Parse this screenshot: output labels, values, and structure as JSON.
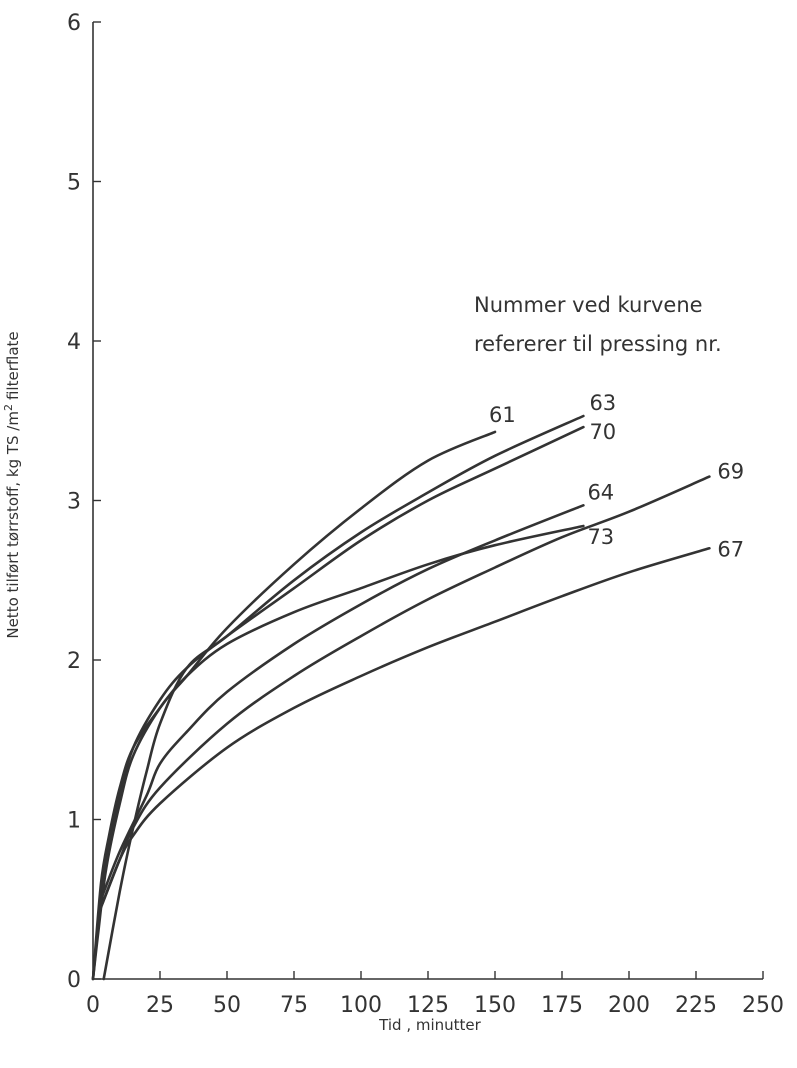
{
  "chart_data": {
    "type": "line",
    "xlabel": "Tid , minutter",
    "ylabel": "Netto tilført tørrstoff, kg TS /m",
    "ylabel_sup": "2",
    "ylabel_end": "filterflate",
    "xlim": [
      0,
      250
    ],
    "ylim": [
      0,
      6
    ],
    "xticks": [
      "0",
      "25",
      "50",
      "75",
      "100",
      "125",
      "150",
      "175",
      "200",
      "225",
      "250"
    ],
    "yticks": [
      "0",
      "1",
      "2",
      "3",
      "4",
      "5",
      "6"
    ],
    "grid": false,
    "annotation": [
      "Nummer ved kurvene",
      "refererer til pressing nr."
    ],
    "series": [
      {
        "name": "61",
        "x": [
          0,
          2,
          5,
          10,
          15,
          25,
          35,
          50,
          75,
          100,
          125,
          150
        ],
        "y": [
          0,
          0.3,
          0.7,
          1.1,
          1.4,
          1.7,
          1.9,
          2.2,
          2.6,
          2.95,
          3.25,
          3.43
        ]
      },
      {
        "name": "63",
        "x": [
          4,
          10,
          15,
          20,
          25,
          35,
          50,
          75,
          100,
          125,
          150,
          183
        ],
        "y": [
          0,
          0.55,
          0.95,
          1.3,
          1.6,
          1.95,
          2.15,
          2.5,
          2.8,
          3.05,
          3.28,
          3.53
        ]
      },
      {
        "name": "70",
        "x": [
          0,
          3,
          6,
          10,
          15,
          25,
          35,
          50,
          75,
          100,
          125,
          150,
          183
        ],
        "y": [
          0,
          0.5,
          0.85,
          1.15,
          1.45,
          1.75,
          1.95,
          2.15,
          2.45,
          2.75,
          3.0,
          3.2,
          3.46
        ]
      },
      {
        "name": "64",
        "x": [
          3,
          10,
          20,
          25,
          35,
          50,
          75,
          100,
          125,
          150,
          183
        ],
        "y": [
          0.5,
          0.8,
          1.15,
          1.35,
          1.55,
          1.8,
          2.1,
          2.35,
          2.57,
          2.75,
          2.97
        ]
      },
      {
        "name": "73",
        "x": [
          0,
          3,
          6,
          10,
          15,
          25,
          35,
          50,
          75,
          100,
          125,
          150,
          183
        ],
        "y": [
          0,
          0.6,
          0.9,
          1.2,
          1.45,
          1.7,
          1.9,
          2.1,
          2.3,
          2.45,
          2.6,
          2.72,
          2.84
        ]
      },
      {
        "name": "69",
        "x": [
          3,
          10,
          15,
          25,
          50,
          75,
          100,
          125,
          150,
          175,
          200,
          230
        ],
        "y": [
          0.45,
          0.75,
          0.95,
          1.2,
          1.6,
          1.9,
          2.15,
          2.38,
          2.58,
          2.77,
          2.93,
          3.15
        ]
      },
      {
        "name": "67",
        "x": [
          3,
          10,
          15,
          25,
          50,
          75,
          100,
          125,
          150,
          175,
          200,
          230
        ],
        "y": [
          0.45,
          0.75,
          0.9,
          1.1,
          1.45,
          1.7,
          1.9,
          2.08,
          2.24,
          2.4,
          2.55,
          2.7
        ]
      }
    ]
  }
}
